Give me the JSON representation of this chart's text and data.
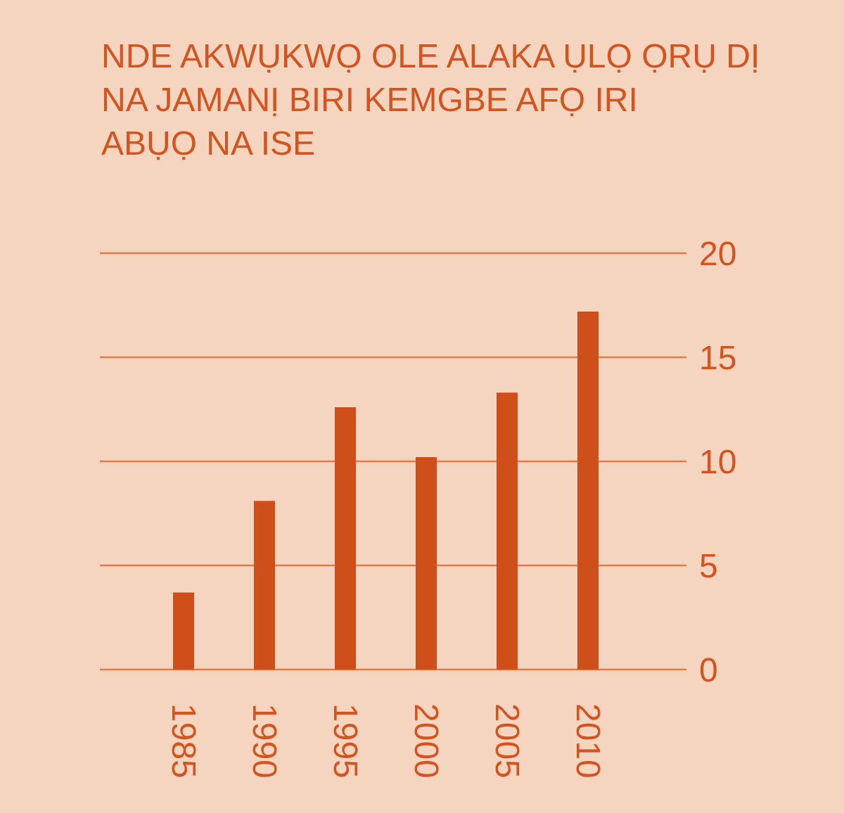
{
  "chart_data": {
    "type": "bar",
    "title": "NDE AKWỤKWỌ OLE ALAKA ỤLỌ ỌRỤ DỊ\nNA JAMANỊ BIRI KEMGBE AFỌ IRI\nABỤỌ NA ISE",
    "categories": [
      "1985",
      "1990",
      "1995",
      "2000",
      "2005",
      "2010"
    ],
    "values": [
      3.7,
      8.1,
      12.6,
      10.2,
      13.3,
      17.2
    ],
    "color": "#cf4f1b",
    "ylim": [
      0,
      20
    ],
    "yticks": [
      0,
      5,
      10,
      15,
      20
    ],
    "grid": "y"
  }
}
